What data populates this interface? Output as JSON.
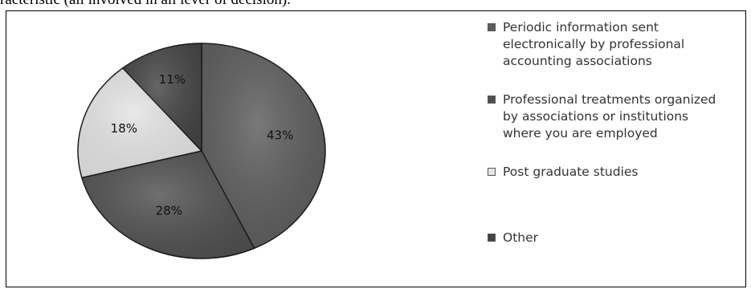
{
  "header_fragment": "racteristic (all involved in all lever of decision).",
  "chart_data": {
    "type": "pie",
    "slices": [
      {
        "label": "Periodic information sent electronically by professional accounting associations",
        "lines": [
          "Periodic information sent",
          "electronically by professional",
          "accounting associations"
        ],
        "value": 43,
        "display": "43%",
        "color": "#5c5c5c"
      },
      {
        "label": "Professional treatments organized by associations or institutions where you are employed",
        "lines": [
          "Professional treatments organized",
          "by associations or institutions",
          "where you are employed"
        ],
        "value": 28,
        "display": "28%",
        "color": "#505050"
      },
      {
        "label": "Post graduate studies",
        "lines": [
          "Post graduate studies"
        ],
        "value": 18,
        "display": "18%",
        "color": "#e4e4e4"
      },
      {
        "label": "Other",
        "lines": [
          "Other"
        ],
        "value": 11,
        "display": "11%",
        "color": "#444444"
      }
    ],
    "legend_position": "right"
  }
}
